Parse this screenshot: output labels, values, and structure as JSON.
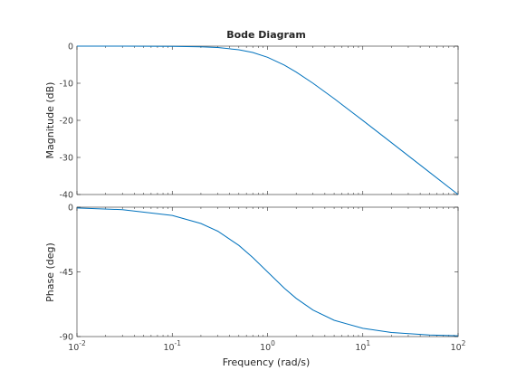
{
  "chart_data": {
    "type": "line",
    "title": "Bode Diagram",
    "xlabel": "Frequency  (rad/s)",
    "x_scale": "log",
    "xlim": [
      0.01,
      100
    ],
    "x_ticks": [
      0.01,
      0.1,
      1,
      10,
      100
    ],
    "x_tick_labels": [
      {
        "base": "10",
        "exp": "-2"
      },
      {
        "base": "10",
        "exp": "-1"
      },
      {
        "base": "10",
        "exp": "0"
      },
      {
        "base": "10",
        "exp": "1"
      },
      {
        "base": "10",
        "exp": "2"
      }
    ],
    "grid": false,
    "line_color": "#0072BD",
    "panels": [
      {
        "ylabel": "Magnitude (dB)",
        "ylim": [
          -40,
          0
        ],
        "y_ticks": [
          0,
          -10,
          -20,
          -30,
          -40
        ],
        "y_tick_labels": [
          "0",
          "-10",
          "-20",
          "-30",
          "-40"
        ],
        "x": [
          0.01,
          0.03,
          0.1,
          0.2,
          0.3,
          0.5,
          0.7,
          1,
          1.5,
          2,
          3,
          5,
          10,
          20,
          50,
          100
        ],
        "values": [
          0,
          0,
          -0.04,
          -0.17,
          -0.37,
          -0.97,
          -1.7,
          -3.01,
          -5.1,
          -6.99,
          -10.0,
          -14.15,
          -20.04,
          -26.03,
          -33.98,
          -40.0
        ]
      },
      {
        "ylabel": "Phase (deg)",
        "ylim": [
          -90,
          0
        ],
        "y_ticks": [
          0,
          -45,
          -90
        ],
        "y_tick_labels": [
          "0",
          "-45",
          "-90"
        ],
        "x": [
          0.01,
          0.03,
          0.1,
          0.2,
          0.3,
          0.5,
          0.7,
          1,
          1.5,
          2,
          3,
          5,
          10,
          20,
          50,
          100
        ],
        "values": [
          -0.57,
          -1.72,
          -5.71,
          -11.31,
          -16.7,
          -26.57,
          -34.99,
          -45.0,
          -56.31,
          -63.43,
          -71.57,
          -78.69,
          -84.29,
          -87.14,
          -88.85,
          -89.43
        ]
      }
    ]
  }
}
